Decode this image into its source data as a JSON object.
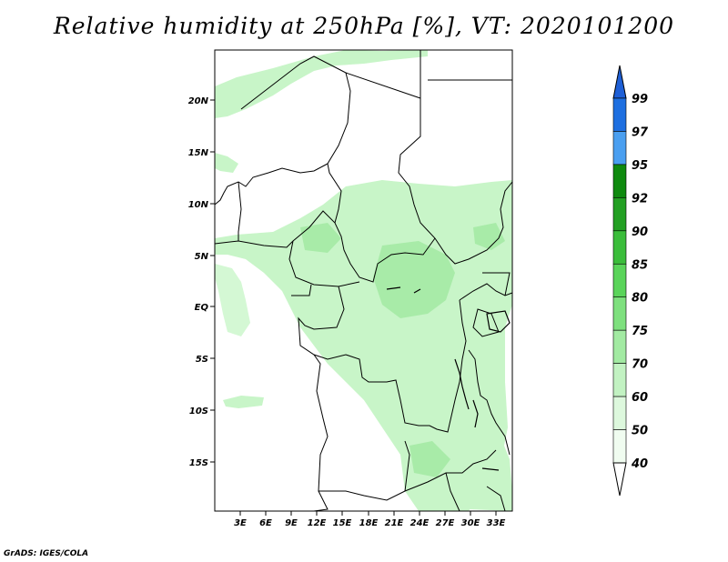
{
  "title": "Relative humidity at 250hPa [%], VT: 2020101200",
  "footer": "GrADS: IGES/COLA",
  "map": {
    "lon_ticks": [
      "3E",
      "6E",
      "9E",
      "12E",
      "15E",
      "18E",
      "21E",
      "24E",
      "27E",
      "30E",
      "33E"
    ],
    "lat_ticks": [
      "20N",
      "15N",
      "10N",
      "5N",
      "EQ",
      "5S",
      "10S",
      "15S"
    ]
  },
  "colorbar": {
    "levels": [
      "99",
      "97",
      "95",
      "92",
      "90",
      "85",
      "80",
      "75",
      "70",
      "60",
      "50",
      "40"
    ],
    "colors": [
      "#1e5fd6",
      "#1e6fe0",
      "#4a9ff0",
      "#0f8a0f",
      "#23a023",
      "#3bbd3b",
      "#5ad45a",
      "#7ee07e",
      "#a2eaa2",
      "#c2f2c2",
      "#ddf8dd",
      "#f0fcf0"
    ]
  },
  "colors": {
    "map_fill": "#c8f5c8",
    "map_fill_dark": "#a8eba8",
    "borders": "#000000"
  }
}
